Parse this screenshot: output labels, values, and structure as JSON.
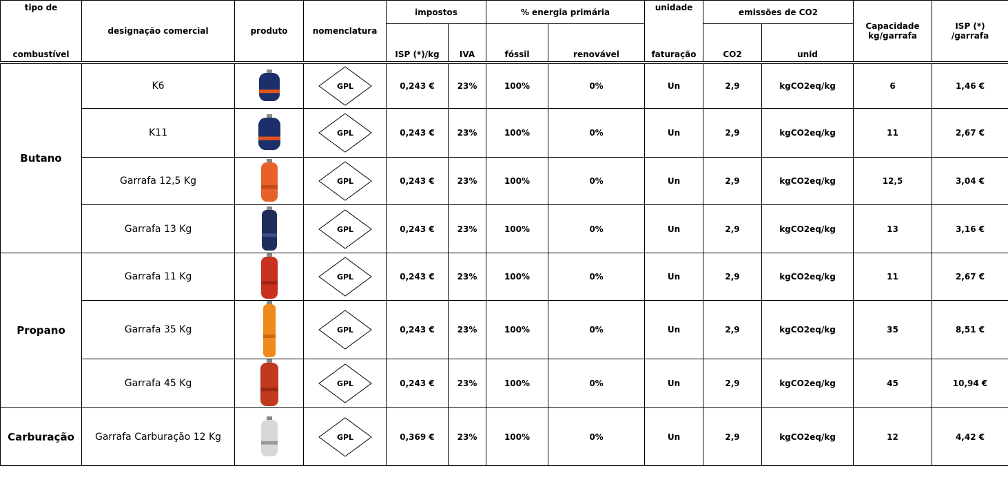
{
  "header": {
    "fuel_type_top": "tipo de",
    "fuel_type_bottom": "combustível",
    "designation": "designação comercial",
    "product": "produto",
    "nomenclature": "nomenclatura",
    "taxes": "impostos",
    "isp_kg": "ISP (*)/kg",
    "iva": "IVA",
    "primary_energy": "% energia primária",
    "fossil": "fóssil",
    "renewable": "renovável",
    "unit_top": "unidade",
    "unit_bottom": "faturação",
    "emissions": "emissões de CO2",
    "co2": "CO2",
    "co2_unit": "unid",
    "capacity": "Capacidade kg/garrafa",
    "isp_bottle": "ISP (*) /garrafa"
  },
  "groups": [
    {
      "name": "Butano",
      "rows": [
        [
          "K6",
          "GPL",
          "0,243 €",
          "23%",
          "100%",
          "0%",
          "Un",
          "2,9",
          "kgCO2eq/kg",
          "6",
          "1,46 €"
        ],
        [
          "K11",
          "GPL",
          "0,243 €",
          "23%",
          "100%",
          "0%",
          "Un",
          "2,9",
          "kgCO2eq/kg",
          "11",
          "2,67 €"
        ],
        [
          "Garrafa 12,5 Kg",
          "GPL",
          "0,243 €",
          "23%",
          "100%",
          "0%",
          "Un",
          "2,9",
          "kgCO2eq/kg",
          "12,5",
          "3,04 €"
        ],
        [
          "Garrafa 13 Kg",
          "GPL",
          "0,243 €",
          "23%",
          "100%",
          "0%",
          "Un",
          "2,9",
          "kgCO2eq/kg",
          "13",
          "3,16 €"
        ]
      ]
    },
    {
      "name": "Propano",
      "rows": [
        [
          "Garrafa 11 Kg",
          "GPL",
          "0,243 €",
          "23%",
          "100%",
          "0%",
          "Un",
          "2,9",
          "kgCO2eq/kg",
          "11",
          "2,67 €"
        ],
        [
          "Garrafa 35 Kg",
          "GPL",
          "0,243 €",
          "23%",
          "100%",
          "0%",
          "Un",
          "2,9",
          "kgCO2eq/kg",
          "35",
          "8,51 €"
        ],
        [
          "Garrafa 45 Kg",
          "GPL",
          "0,243 €",
          "23%",
          "100%",
          "0%",
          "Un",
          "2,9",
          "kgCO2eq/kg",
          "45",
          "10,94 €"
        ]
      ]
    },
    {
      "name": "Carburação",
      "rows": [
        [
          "Garrafa Carburação 12 Kg",
          "GPL",
          "0,369 €",
          "23%",
          "100%",
          "0%",
          "Un",
          "2,9",
          "kgCO2eq/kg",
          "12",
          "4,42 €"
        ]
      ]
    }
  ]
}
